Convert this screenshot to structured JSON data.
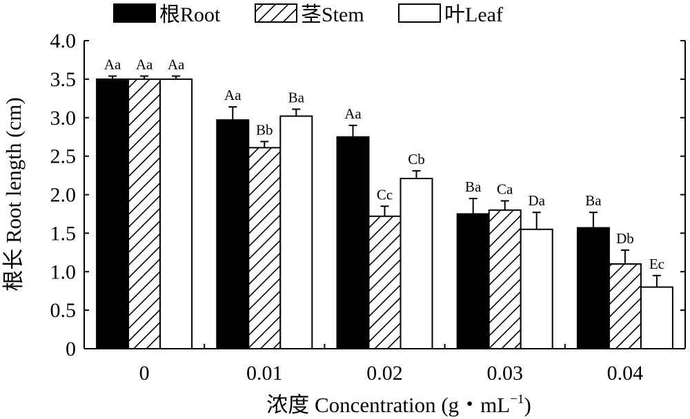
{
  "chart_data": {
    "type": "bar",
    "xlabel": "浓度 Concentration (g・mL",
    "xlabel_superscript": "−1",
    "xlabel_suffix": ")",
    "ylabel": "根长 Root length (cm)",
    "ylim": [
      0,
      4.0
    ],
    "yticks": [
      "0",
      "0.5",
      "1.0",
      "1.5",
      "2.0",
      "2.5",
      "3.0",
      "3.5",
      "4.0"
    ],
    "ytick_values": [
      0,
      0.5,
      1.0,
      1.5,
      2.0,
      2.5,
      3.0,
      3.5,
      4.0
    ],
    "categories": [
      "0",
      "0.01",
      "0.02",
      "0.03",
      "0.04"
    ],
    "legend_position": "top",
    "grid": false,
    "series": [
      {
        "name": "根Root",
        "pattern": "solid-black",
        "values": [
          3.5,
          2.97,
          2.75,
          1.75,
          1.57
        ],
        "errors": [
          0.04,
          0.17,
          0.15,
          0.2,
          0.2
        ],
        "labels": [
          "Aa",
          "Aa",
          "Aa",
          "Ba",
          "Ba"
        ]
      },
      {
        "name": "茎Stem",
        "pattern": "diagonal-hatch",
        "values": [
          3.5,
          2.61,
          1.72,
          1.8,
          1.1
        ],
        "errors": [
          0.04,
          0.08,
          0.13,
          0.12,
          0.18
        ],
        "labels": [
          "Aa",
          "Bb",
          "Cc",
          "Ca",
          "Db"
        ]
      },
      {
        "name": "叶Leaf",
        "pattern": "white",
        "values": [
          3.5,
          3.02,
          2.21,
          1.55,
          0.8
        ],
        "errors": [
          0.04,
          0.09,
          0.1,
          0.22,
          0.15
        ],
        "labels": [
          "Aa",
          "Ba",
          "Cb",
          "Da",
          "Ec"
        ]
      }
    ]
  }
}
